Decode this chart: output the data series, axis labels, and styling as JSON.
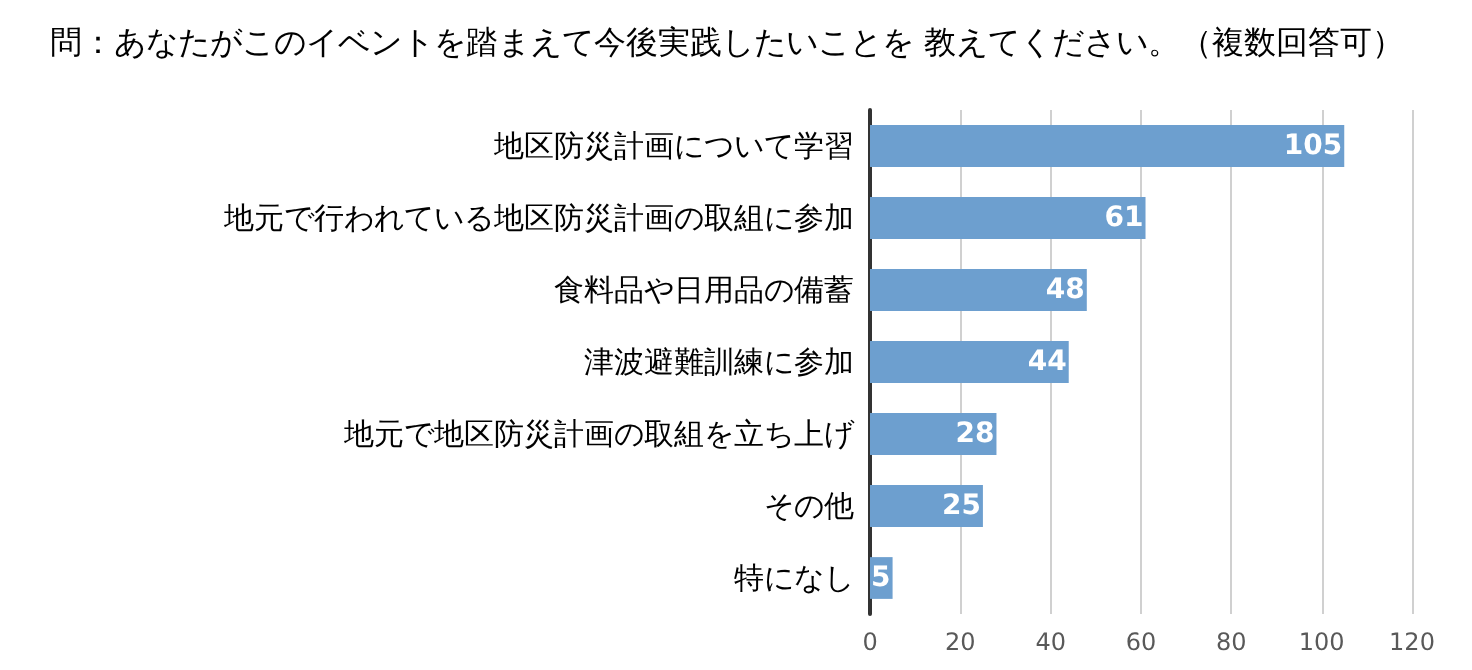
{
  "chart_data": {
    "type": "bar",
    "orientation": "horizontal",
    "title": "問：あなたがこのイベントを踏まえて今後実践したいことを 教えてください。（複数回答可）",
    "categories": [
      "地区防災計画について学習",
      "地元で行われている地区防災計画の取組に参加",
      "食料品や日用品の備蓄",
      "津波避難訓練に参加",
      "地元で地区防災計画の取組を立ち上げ",
      "その他",
      "特になし"
    ],
    "values": [
      105,
      61,
      48,
      44,
      28,
      25,
      5
    ],
    "color": "#6d9fcf",
    "xlim": [
      0,
      120
    ],
    "xticks": [
      0,
      20,
      40,
      60,
      80,
      100,
      120
    ],
    "grid": "x",
    "data_labels": true
  }
}
